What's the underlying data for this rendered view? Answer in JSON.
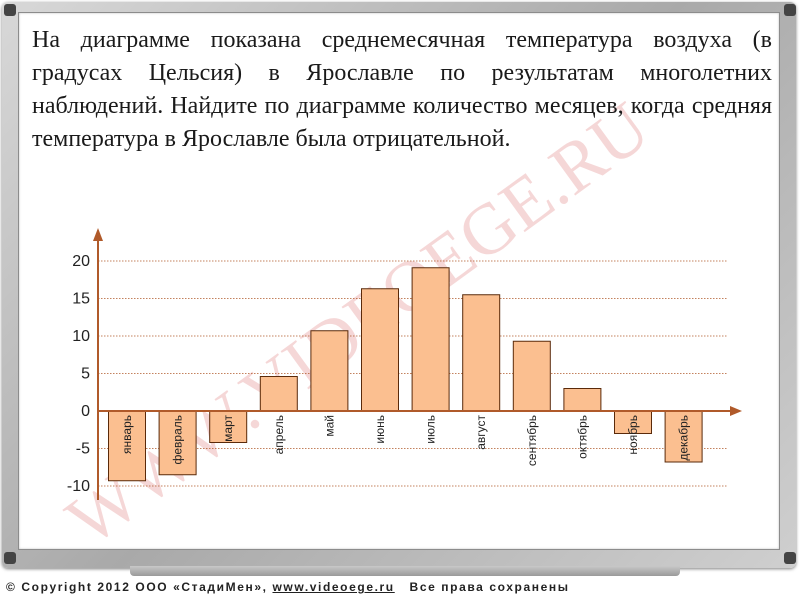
{
  "problem_text": "На диаграмме показана среднемесячная температура воздуха (в градусах Цельсия) в Ярославле по результатам многолетних наблюдений. Найдите по диаграмме количество месяцев, когда средняя температура в Ярославле была отрицательной.",
  "watermark": "WWW.VIDEOEGE.RU",
  "footer": {
    "copyright": "© Copyright 2012 ООО «СтадиМен», ",
    "site": "www.videoege.ru",
    "rights": "Все права сохранены"
  },
  "chart_data": {
    "type": "bar",
    "categories": [
      "январь",
      "февраль",
      "март",
      "апрель",
      "май",
      "июнь",
      "июль",
      "август",
      "сентябрь",
      "октябрь",
      "ноябрь",
      "декабрь"
    ],
    "values": [
      -9.3,
      -8.5,
      -4.2,
      4.6,
      10.7,
      16.3,
      19.1,
      15.5,
      9.3,
      3.0,
      -3.0,
      -6.8
    ],
    "yticks": [
      20,
      15,
      10,
      5,
      0,
      -5,
      -10
    ],
    "ylim": [
      -10,
      20
    ],
    "grid": true,
    "bar_color": "#fbbf90",
    "bar_stroke": "#5a2a0a",
    "axis_color": "#b05a2a",
    "grid_color": "#b05a2a"
  }
}
